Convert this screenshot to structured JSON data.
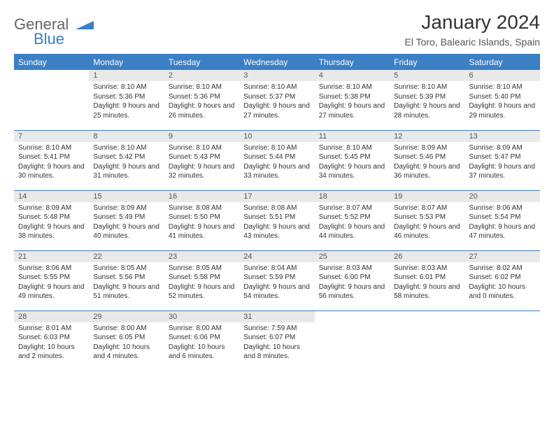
{
  "logo": {
    "text1": "General",
    "text2": "Blue",
    "color1": "#666666",
    "color2": "#3b7fc4"
  },
  "title": "January 2024",
  "subtitle": "El Toro, Balearic Islands, Spain",
  "header_bg": "#3b7fc4",
  "daynum_bg": "#e9e9e9",
  "border_color": "#3b7fc4",
  "weekdays": [
    "Sunday",
    "Monday",
    "Tuesday",
    "Wednesday",
    "Thursday",
    "Friday",
    "Saturday"
  ],
  "weeks": [
    [
      {
        "n": "",
        "lines": []
      },
      {
        "n": "1",
        "lines": [
          "Sunrise: 8:10 AM",
          "Sunset: 5:36 PM",
          "Daylight: 9 hours and 25 minutes."
        ]
      },
      {
        "n": "2",
        "lines": [
          "Sunrise: 8:10 AM",
          "Sunset: 5:36 PM",
          "Daylight: 9 hours and 26 minutes."
        ]
      },
      {
        "n": "3",
        "lines": [
          "Sunrise: 8:10 AM",
          "Sunset: 5:37 PM",
          "Daylight: 9 hours and 27 minutes."
        ]
      },
      {
        "n": "4",
        "lines": [
          "Sunrise: 8:10 AM",
          "Sunset: 5:38 PM",
          "Daylight: 9 hours and 27 minutes."
        ]
      },
      {
        "n": "5",
        "lines": [
          "Sunrise: 8:10 AM",
          "Sunset: 5:39 PM",
          "Daylight: 9 hours and 28 minutes."
        ]
      },
      {
        "n": "6",
        "lines": [
          "Sunrise: 8:10 AM",
          "Sunset: 5:40 PM",
          "Daylight: 9 hours and 29 minutes."
        ]
      }
    ],
    [
      {
        "n": "7",
        "lines": [
          "Sunrise: 8:10 AM",
          "Sunset: 5:41 PM",
          "Daylight: 9 hours and 30 minutes."
        ]
      },
      {
        "n": "8",
        "lines": [
          "Sunrise: 8:10 AM",
          "Sunset: 5:42 PM",
          "Daylight: 9 hours and 31 minutes."
        ]
      },
      {
        "n": "9",
        "lines": [
          "Sunrise: 8:10 AM",
          "Sunset: 5:43 PM",
          "Daylight: 9 hours and 32 minutes."
        ]
      },
      {
        "n": "10",
        "lines": [
          "Sunrise: 8:10 AM",
          "Sunset: 5:44 PM",
          "Daylight: 9 hours and 33 minutes."
        ]
      },
      {
        "n": "11",
        "lines": [
          "Sunrise: 8:10 AM",
          "Sunset: 5:45 PM",
          "Daylight: 9 hours and 34 minutes."
        ]
      },
      {
        "n": "12",
        "lines": [
          "Sunrise: 8:09 AM",
          "Sunset: 5:46 PM",
          "Daylight: 9 hours and 36 minutes."
        ]
      },
      {
        "n": "13",
        "lines": [
          "Sunrise: 8:09 AM",
          "Sunset: 5:47 PM",
          "Daylight: 9 hours and 37 minutes."
        ]
      }
    ],
    [
      {
        "n": "14",
        "lines": [
          "Sunrise: 8:09 AM",
          "Sunset: 5:48 PM",
          "Daylight: 9 hours and 38 minutes."
        ]
      },
      {
        "n": "15",
        "lines": [
          "Sunrise: 8:09 AM",
          "Sunset: 5:49 PM",
          "Daylight: 9 hours and 40 minutes."
        ]
      },
      {
        "n": "16",
        "lines": [
          "Sunrise: 8:08 AM",
          "Sunset: 5:50 PM",
          "Daylight: 9 hours and 41 minutes."
        ]
      },
      {
        "n": "17",
        "lines": [
          "Sunrise: 8:08 AM",
          "Sunset: 5:51 PM",
          "Daylight: 9 hours and 43 minutes."
        ]
      },
      {
        "n": "18",
        "lines": [
          "Sunrise: 8:07 AM",
          "Sunset: 5:52 PM",
          "Daylight: 9 hours and 44 minutes."
        ]
      },
      {
        "n": "19",
        "lines": [
          "Sunrise: 8:07 AM",
          "Sunset: 5:53 PM",
          "Daylight: 9 hours and 46 minutes."
        ]
      },
      {
        "n": "20",
        "lines": [
          "Sunrise: 8:06 AM",
          "Sunset: 5:54 PM",
          "Daylight: 9 hours and 47 minutes."
        ]
      }
    ],
    [
      {
        "n": "21",
        "lines": [
          "Sunrise: 8:06 AM",
          "Sunset: 5:55 PM",
          "Daylight: 9 hours and 49 minutes."
        ]
      },
      {
        "n": "22",
        "lines": [
          "Sunrise: 8:05 AM",
          "Sunset: 5:56 PM",
          "Daylight: 9 hours and 51 minutes."
        ]
      },
      {
        "n": "23",
        "lines": [
          "Sunrise: 8:05 AM",
          "Sunset: 5:58 PM",
          "Daylight: 9 hours and 52 minutes."
        ]
      },
      {
        "n": "24",
        "lines": [
          "Sunrise: 8:04 AM",
          "Sunset: 5:59 PM",
          "Daylight: 9 hours and 54 minutes."
        ]
      },
      {
        "n": "25",
        "lines": [
          "Sunrise: 8:03 AM",
          "Sunset: 6:00 PM",
          "Daylight: 9 hours and 56 minutes."
        ]
      },
      {
        "n": "26",
        "lines": [
          "Sunrise: 8:03 AM",
          "Sunset: 6:01 PM",
          "Daylight: 9 hours and 58 minutes."
        ]
      },
      {
        "n": "27",
        "lines": [
          "Sunrise: 8:02 AM",
          "Sunset: 6:02 PM",
          "Daylight: 10 hours and 0 minutes."
        ]
      }
    ],
    [
      {
        "n": "28",
        "lines": [
          "Sunrise: 8:01 AM",
          "Sunset: 6:03 PM",
          "Daylight: 10 hours and 2 minutes."
        ]
      },
      {
        "n": "29",
        "lines": [
          "Sunrise: 8:00 AM",
          "Sunset: 6:05 PM",
          "Daylight: 10 hours and 4 minutes."
        ]
      },
      {
        "n": "30",
        "lines": [
          "Sunrise: 8:00 AM",
          "Sunset: 6:06 PM",
          "Daylight: 10 hours and 6 minutes."
        ]
      },
      {
        "n": "31",
        "lines": [
          "Sunrise: 7:59 AM",
          "Sunset: 6:07 PM",
          "Daylight: 10 hours and 8 minutes."
        ]
      },
      {
        "n": "",
        "lines": []
      },
      {
        "n": "",
        "lines": []
      },
      {
        "n": "",
        "lines": []
      }
    ]
  ]
}
